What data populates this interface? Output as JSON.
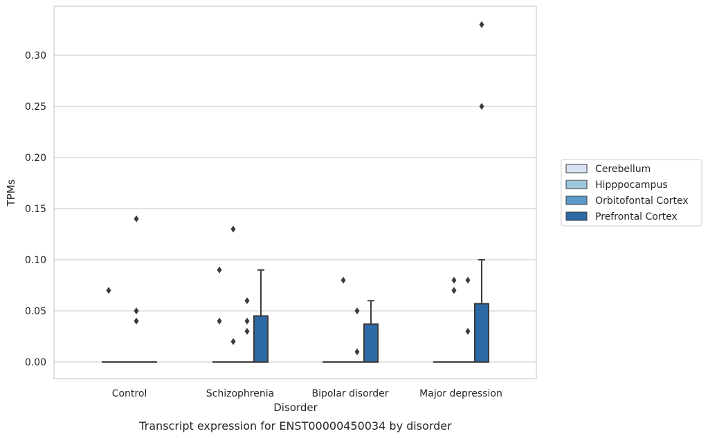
{
  "chart_data": {
    "type": "box",
    "caption": "Transcript expression for ENST00000450034 by disorder",
    "xlabel": "Disorder",
    "ylabel": "TPMs",
    "ylim": [
      -0.016,
      0.346
    ],
    "yticks": [
      0.0,
      0.05,
      0.1,
      0.15,
      0.2,
      0.25,
      0.3
    ],
    "ytick_labels": [
      "0.00",
      "0.05",
      "0.10",
      "0.15",
      "0.20",
      "0.25",
      "0.30"
    ],
    "grid": true,
    "legend_position": "right",
    "categories": [
      "Control",
      "Schizophrenia",
      "Bipolar disorder",
      "Major depression"
    ],
    "series": [
      {
        "name": "Cerebellum",
        "color": "#d6e4f2",
        "boxes": [
          {
            "q1": 0,
            "median": 0,
            "q3": 0,
            "whisker_low": 0,
            "whisker_high": 0,
            "outliers": [
              0.07
            ]
          },
          {
            "q1": 0,
            "median": 0,
            "q3": 0,
            "whisker_low": 0,
            "whisker_high": 0,
            "outliers": [
              0.09,
              0.04
            ]
          },
          {
            "q1": 0,
            "median": 0,
            "q3": 0,
            "whisker_low": 0,
            "whisker_high": 0,
            "outliers": []
          },
          {
            "q1": 0,
            "median": 0,
            "q3": 0,
            "whisker_low": 0,
            "whisker_high": 0,
            "outliers": []
          }
        ]
      },
      {
        "name": "Hipppocampus",
        "color": "#9fc5df",
        "boxes": [
          {
            "q1": 0,
            "median": 0,
            "q3": 0,
            "whisker_low": 0,
            "whisker_high": 0,
            "outliers": []
          },
          {
            "q1": 0,
            "median": 0,
            "q3": 0,
            "whisker_low": 0,
            "whisker_high": 0,
            "outliers": [
              0.13,
              0.02
            ]
          },
          {
            "q1": 0,
            "median": 0,
            "q3": 0,
            "whisker_low": 0,
            "whisker_high": 0,
            "outliers": [
              0.08
            ]
          },
          {
            "q1": 0,
            "median": 0,
            "q3": 0,
            "whisker_low": 0,
            "whisker_high": 0,
            "outliers": [
              0.08,
              0.07
            ]
          }
        ]
      },
      {
        "name": "Orbitofontal Cortex",
        "color": "#5a9bc9",
        "boxes": [
          {
            "q1": 0,
            "median": 0,
            "q3": 0,
            "whisker_low": 0,
            "whisker_high": 0,
            "outliers": [
              0.04,
              0.14,
              0.05
            ]
          },
          {
            "q1": 0,
            "median": 0,
            "q3": 0,
            "whisker_low": 0,
            "whisker_high": 0,
            "outliers": [
              0.06,
              0.04,
              0.03
            ]
          },
          {
            "q1": 0,
            "median": 0,
            "q3": 0,
            "whisker_low": 0,
            "whisker_high": 0,
            "outliers": [
              0.05,
              0.01
            ]
          },
          {
            "q1": 0,
            "median": 0,
            "q3": 0,
            "whisker_low": 0,
            "whisker_high": 0,
            "outliers": [
              0.08,
              0.03
            ]
          }
        ]
      },
      {
        "name": "Prefrontal Cortex",
        "color": "#2c6aa6",
        "boxes": [
          {
            "q1": 0,
            "median": 0,
            "q3": 0,
            "whisker_low": 0,
            "whisker_high": 0,
            "outliers": []
          },
          {
            "q1": 0,
            "median": 0,
            "q3": 0.045,
            "whisker_low": 0,
            "whisker_high": 0.09,
            "outliers": []
          },
          {
            "q1": 0,
            "median": 0,
            "q3": 0.037,
            "whisker_low": 0,
            "whisker_high": 0.06,
            "outliers": []
          },
          {
            "q1": 0,
            "median": 0,
            "q3": 0.057,
            "whisker_low": 0,
            "whisker_high": 0.1,
            "outliers": [
              0.25,
              0.33
            ]
          }
        ]
      }
    ]
  }
}
